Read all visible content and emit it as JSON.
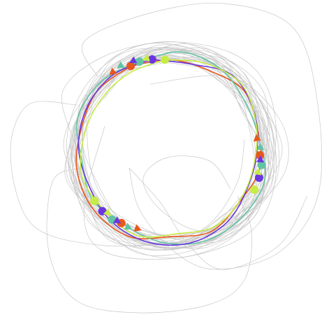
{
  "figure": {
    "background": "#ffffff",
    "gray_color": "#c8c8c8",
    "gray_trajectories": 26
  },
  "loops": [
    {
      "name": "orange-loop",
      "color": "#e8581e",
      "start_point": {
        "angle_deg": -116,
        "radius": 132
      },
      "arrow_direction": "clockwise"
    },
    {
      "name": "teal-loop",
      "color": "#62c3a5",
      "start_point": {
        "angle_deg": -110,
        "radius": 133
      },
      "arrow_direction": "clockwise"
    },
    {
      "name": "purple-loop",
      "color": "#6b36e0",
      "start_point": {
        "angle_deg": -102,
        "radius": 131
      },
      "arrow_direction": "clockwise"
    },
    {
      "name": "lime-loop",
      "color": "#c6ec45",
      "start_point": {
        "angle_deg": -94,
        "radius": 128
      },
      "arrow_direction": "clockwise"
    }
  ]
}
